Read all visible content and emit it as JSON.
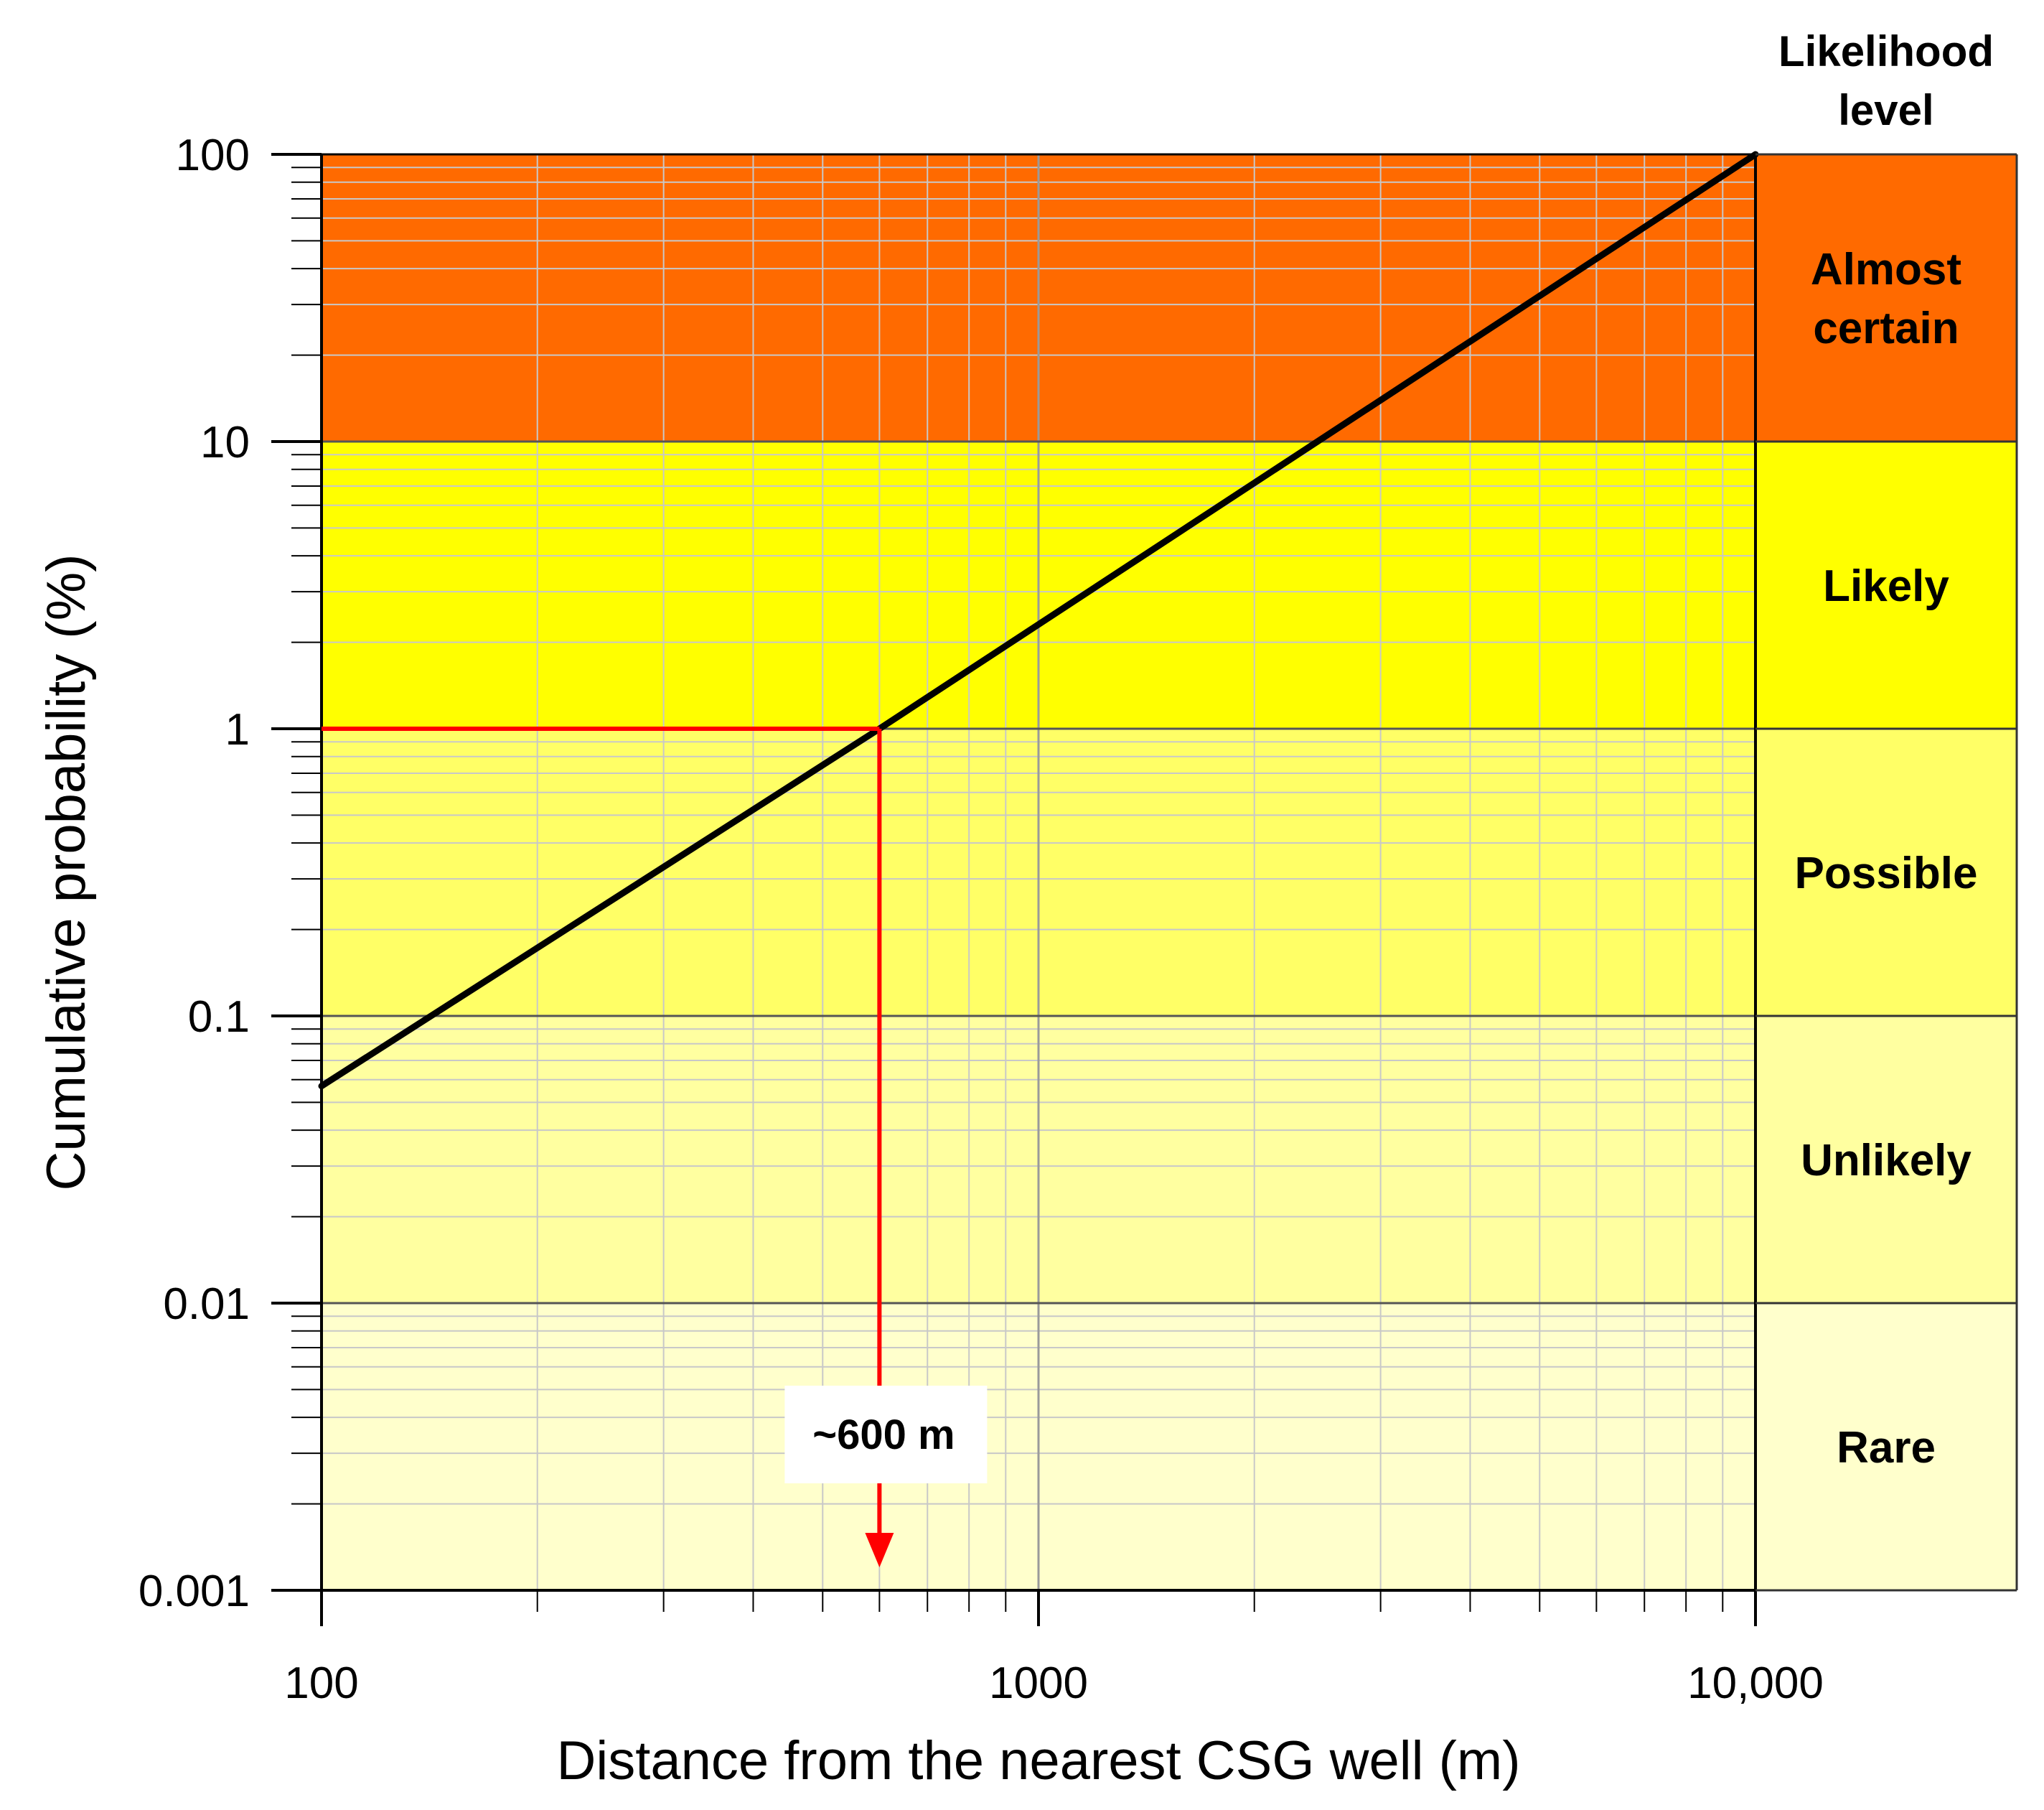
{
  "chart_data": {
    "type": "line",
    "title": "",
    "xlabel": "Distance from the nearest CSG well (m)",
    "ylabel": "Cumulative probability (%)",
    "x_scale": "log",
    "y_scale": "log",
    "xlim": [
      100,
      10000
    ],
    "ylim": [
      0.001,
      100
    ],
    "grid": true,
    "x_ticks": [
      {
        "value": 100,
        "label": "100"
      },
      {
        "value": 1000,
        "label": "1000"
      },
      {
        "value": 10000,
        "label": "10,000"
      }
    ],
    "y_ticks": [
      {
        "value": 100,
        "label": "100"
      },
      {
        "value": 10,
        "label": "10"
      },
      {
        "value": 1,
        "label": "1"
      },
      {
        "value": 0.1,
        "label": "0.1"
      },
      {
        "value": 0.01,
        "label": "0.01"
      },
      {
        "value": 0.001,
        "label": "0.001"
      }
    ],
    "series": [
      {
        "color": "#000000",
        "x": [
          100,
          600,
          10000
        ],
        "y": [
          0.057,
          1,
          100
        ]
      }
    ],
    "likelihood_header": [
      "Likelihood",
      "level"
    ],
    "likelihood_levels": [
      {
        "lines": [
          "Almost",
          "certain"
        ],
        "y_range": [
          10,
          100
        ],
        "color": "#FF6A00"
      },
      {
        "lines": [
          "Likely"
        ],
        "y_range": [
          1,
          10
        ],
        "color": "#FFFF00"
      },
      {
        "lines": [
          "Possible"
        ],
        "y_range": [
          0.1,
          1
        ],
        "color": "#FFFF66"
      },
      {
        "lines": [
          "Unlikely"
        ],
        "y_range": [
          0.01,
          0.1
        ],
        "color": "#FFFFA0"
      },
      {
        "lines": [
          "Rare"
        ],
        "y_range": [
          0.001,
          0.01
        ],
        "color": "#FFFFCC"
      }
    ],
    "annotation": {
      "label": "~600 m",
      "x": 600,
      "y": 1,
      "color": "#FF0000"
    }
  }
}
